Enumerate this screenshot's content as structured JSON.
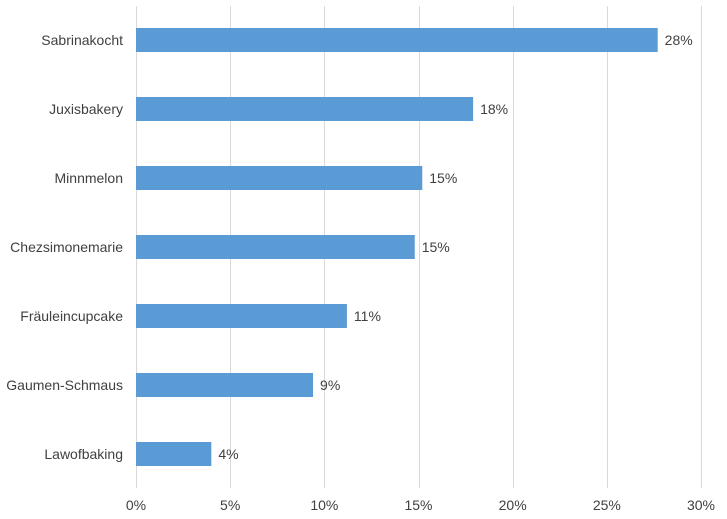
{
  "chart_data": {
    "type": "bar",
    "orientation": "horizontal",
    "title": "",
    "xlabel": "",
    "ylabel": "",
    "categories": [
      "Sabrinakocht",
      "Juxisbakery",
      "Minnmelon",
      "Chezsimonemarie",
      "Fräuleincupcake",
      "Gaumen-Schmaus",
      "Lawofbaking"
    ],
    "values": [
      27.7,
      17.9,
      15.2,
      14.8,
      11.2,
      9.4,
      4.0
    ],
    "data_labels": [
      "28%",
      "18%",
      "15%",
      "15%",
      "11%",
      "9%",
      "4%"
    ],
    "xlim": [
      0,
      30
    ],
    "x_ticks": [
      0,
      5,
      10,
      15,
      20,
      25,
      30
    ],
    "x_tick_labels": [
      "0%",
      "5%",
      "10%",
      "15%",
      "20%",
      "25%",
      "30%"
    ],
    "grid": true,
    "legend": "none",
    "colors": {
      "bar": "#5b9bd5",
      "grid": "#d9d9d9",
      "text": "#404040"
    }
  }
}
